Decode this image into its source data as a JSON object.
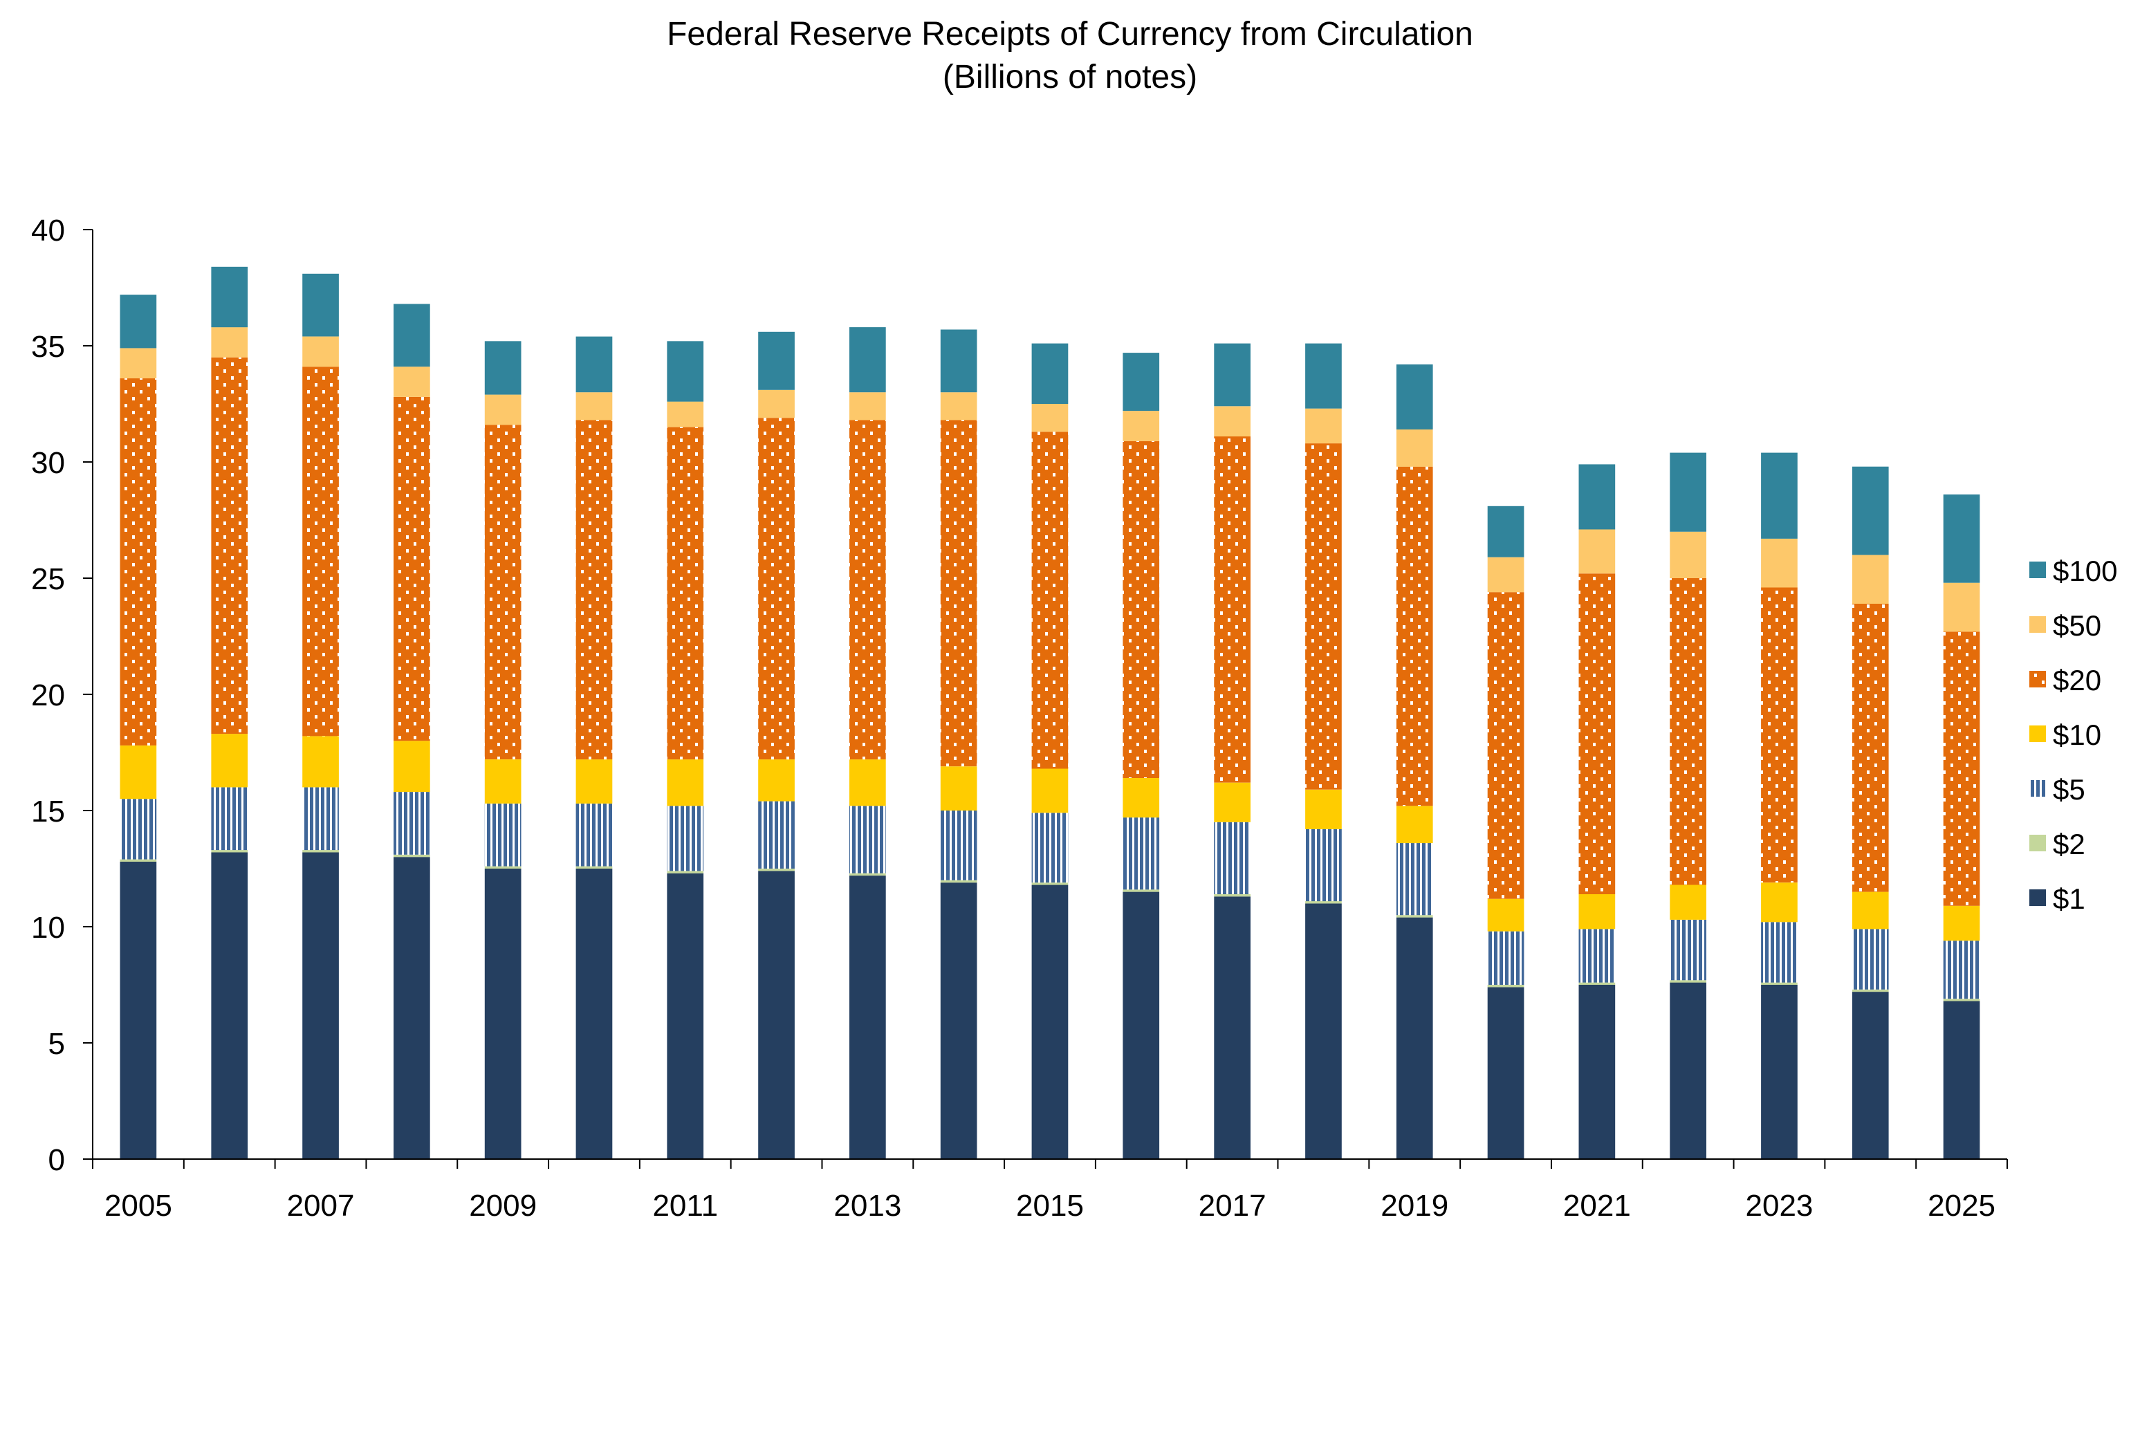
{
  "chart_data": {
    "type": "bar",
    "stacked": true,
    "title": "Federal Reserve Receipts of Currency from Circulation",
    "subtitle": "(Billions of notes)",
    "xlabel": "",
    "ylabel": "",
    "ylim": [
      0,
      40
    ],
    "yticks": [
      "0",
      "5",
      "10",
      "15",
      "20",
      "25",
      "30",
      "35",
      "40"
    ],
    "ytick_values": [
      0,
      5,
      10,
      15,
      20,
      25,
      30,
      35,
      40
    ],
    "categories": [
      "2005",
      "2006",
      "2007",
      "2008",
      "2009",
      "2010",
      "2011",
      "2012",
      "2013",
      "2014",
      "2015",
      "2016",
      "2017",
      "2018",
      "2019",
      "2020",
      "2021",
      "2022",
      "2023",
      "2024",
      "2025"
    ],
    "xtick_labels": [
      "2005",
      "",
      "2007",
      "",
      "2009",
      "",
      "2011",
      "",
      "2013",
      "",
      "2015",
      "",
      "2017",
      "",
      "2019",
      "",
      "2021",
      "",
      "2023",
      "",
      "2025"
    ],
    "grid": false,
    "legend_position": "right",
    "series": [
      {
        "name": "$1",
        "color": "#253f60",
        "pattern": "solid",
        "values": [
          12.8,
          13.2,
          13.2,
          13.0,
          12.5,
          12.5,
          12.3,
          12.4,
          12.2,
          11.9,
          11.8,
          11.5,
          11.3,
          11.0,
          10.4,
          7.4,
          7.5,
          7.6,
          7.5,
          7.2,
          6.8
        ]
      },
      {
        "name": "$2",
        "color": "#c4d79b",
        "pattern": "solid",
        "values": [
          0.1,
          0.1,
          0.1,
          0.1,
          0.1,
          0.1,
          0.1,
          0.1,
          0.1,
          0.1,
          0.1,
          0.1,
          0.1,
          0.1,
          0.1,
          0.1,
          0.1,
          0.1,
          0.1,
          0.1,
          0.1
        ]
      },
      {
        "name": "$5",
        "color": "#3f6698",
        "pattern": "vertical-stripes",
        "values": [
          2.6,
          2.7,
          2.7,
          2.7,
          2.7,
          2.7,
          2.8,
          2.9,
          2.9,
          3.0,
          3.0,
          3.1,
          3.1,
          3.1,
          3.1,
          2.3,
          2.3,
          2.6,
          2.6,
          2.6,
          2.5
        ]
      },
      {
        "name": "$10",
        "color": "#ffcc00",
        "pattern": "solid",
        "values": [
          2.3,
          2.3,
          2.2,
          2.2,
          1.9,
          1.9,
          2.0,
          1.8,
          2.0,
          1.9,
          1.9,
          1.7,
          1.7,
          1.7,
          1.6,
          1.4,
          1.5,
          1.5,
          1.7,
          1.6,
          1.5
        ]
      },
      {
        "name": "$20",
        "color": "#e46c0a",
        "pattern": "dotted",
        "values": [
          15.8,
          16.2,
          15.9,
          14.8,
          14.4,
          14.6,
          14.3,
          14.7,
          14.6,
          14.9,
          14.5,
          14.5,
          14.9,
          14.9,
          14.6,
          13.2,
          13.8,
          13.2,
          12.7,
          12.4,
          11.8
        ]
      },
      {
        "name": "$50",
        "color": "#fdc86a",
        "pattern": "solid",
        "values": [
          1.3,
          1.3,
          1.3,
          1.3,
          1.3,
          1.2,
          1.1,
          1.2,
          1.2,
          1.2,
          1.2,
          1.3,
          1.3,
          1.5,
          1.6,
          1.5,
          1.9,
          2.0,
          2.1,
          2.1,
          2.1
        ]
      },
      {
        "name": "$100",
        "color": "#31849b",
        "pattern": "solid",
        "values": [
          2.3,
          2.6,
          2.7,
          2.7,
          2.3,
          2.4,
          2.6,
          2.5,
          2.8,
          2.7,
          2.6,
          2.5,
          2.7,
          2.8,
          2.8,
          2.2,
          2.8,
          3.4,
          3.7,
          3.8,
          3.8
        ]
      }
    ],
    "legend_order": [
      "$100",
      "$50",
      "$20",
      "$10",
      "$5",
      "$2",
      "$1"
    ]
  }
}
